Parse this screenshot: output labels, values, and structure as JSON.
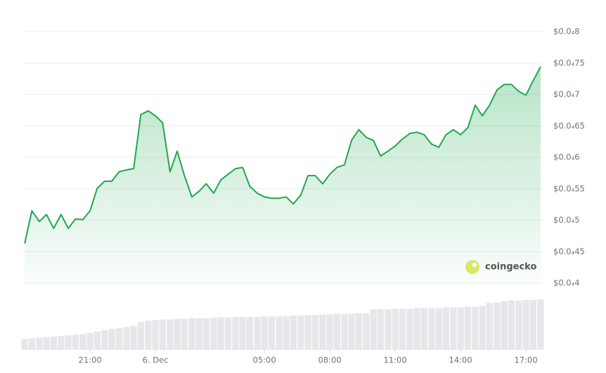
{
  "chart_data": {
    "type": "line",
    "x": [
      -6,
      -5.67,
      -5.33,
      -5,
      -4.67,
      -4.33,
      -4,
      -3.67,
      -3.33,
      -3,
      -2.67,
      -2.33,
      -2,
      -1.67,
      -1.33,
      -1,
      -0.67,
      -0.33,
      0,
      0.33,
      0.67,
      1,
      1.33,
      1.67,
      2,
      2.33,
      2.67,
      3,
      3.33,
      3.67,
      4,
      4.33,
      4.67,
      5,
      5.33,
      5.67,
      6,
      6.33,
      6.67,
      7,
      7.33,
      7.67,
      8,
      8.33,
      8.67,
      9,
      9.33,
      9.67,
      10,
      10.33,
      10.67,
      11,
      11.33,
      11.67,
      12,
      12.33,
      12.67,
      13,
      13.33,
      13.67,
      14,
      14.33,
      14.67,
      15,
      15.33,
      15.67,
      16,
      16.33,
      16.67,
      17,
      17.33,
      17.67
    ],
    "series": [
      {
        "color": "#1fa84f",
        "values": [
          4.63e-05,
          5.15e-05,
          4.98e-05,
          5.09e-05,
          4.87e-05,
          5.09e-05,
          4.87e-05,
          5.02e-05,
          5.01e-05,
          5.15e-05,
          5.51e-05,
          5.62e-05,
          5.62e-05,
          5.77e-05,
          5.8e-05,
          5.82e-05,
          6.68e-05,
          6.74e-05,
          6.66e-05,
          6.55e-05,
          5.77e-05,
          6.1e-05,
          5.71e-05,
          5.37e-05,
          5.46e-05,
          5.58e-05,
          5.43e-05,
          5.64e-05,
          5.73e-05,
          5.82e-05,
          5.84e-05,
          5.54e-05,
          5.43e-05,
          5.37e-05,
          5.35e-05,
          5.35e-05,
          5.37e-05,
          5.26e-05,
          5.4e-05,
          5.71e-05,
          5.71e-05,
          5.58e-05,
          5.73e-05,
          5.84e-05,
          5.88e-05,
          6.27e-05,
          6.44e-05,
          6.32e-05,
          6.27e-05,
          6.02e-05,
          6.1e-05,
          6.18e-05,
          6.29e-05,
          6.38e-05,
          6.4e-05,
          6.36e-05,
          6.21e-05,
          6.16e-05,
          6.36e-05,
          6.44e-05,
          6.36e-05,
          6.47e-05,
          6.83e-05,
          6.66e-05,
          6.83e-05,
          7.07e-05,
          7.16e-05,
          7.16e-05,
          7.05e-05,
          6.99e-05,
          7.22e-05,
          7.44e-05
        ]
      }
    ],
    "volume": [
      17,
      18,
      19,
      20,
      21,
      22,
      23,
      24,
      25,
      27,
      29,
      31,
      33,
      34,
      36,
      38,
      44,
      46,
      47,
      48,
      48,
      49,
      49,
      50,
      50,
      50,
      51,
      51,
      51,
      52,
      52,
      52,
      52,
      53,
      53,
      53,
      53,
      54,
      54,
      55,
      55,
      56,
      56,
      57,
      57,
      57,
      58,
      58,
      64,
      64,
      64,
      65,
      65,
      65,
      66,
      66,
      66,
      66,
      67,
      67,
      67,
      68,
      68,
      70,
      74,
      75,
      77,
      78,
      78,
      79,
      79,
      80
    ],
    "volume_color": "#e5e7eb",
    "xlim": [
      -6.1,
      17.77
    ],
    "xticks": [
      {
        "value": -3,
        "label": "21:00"
      },
      {
        "value": 0,
        "label": "6. Dec"
      },
      {
        "value": 5,
        "label": "05:00"
      },
      {
        "value": 8,
        "label": "08:00"
      },
      {
        "value": 11,
        "label": "11:00"
      },
      {
        "value": 14,
        "label": "14:00"
      },
      {
        "value": 17,
        "label": "17:00"
      }
    ],
    "ylim": [
      4e-05,
      8e-05
    ],
    "yticks": [
      {
        "value": 8e-05,
        "label": "$0.0₄8"
      },
      {
        "value": 7.5e-05,
        "label": "$0.0₄75"
      },
      {
        "value": 7e-05,
        "label": "$0.0₄7"
      },
      {
        "value": 6.5e-05,
        "label": "$0.0₄65"
      },
      {
        "value": 6e-05,
        "label": "$0.0₄6"
      },
      {
        "value": 5.5e-05,
        "label": "$0.0₄55"
      },
      {
        "value": 5e-05,
        "label": "$0.0₄5"
      },
      {
        "value": 4.5e-05,
        "label": "$0.0₄45"
      },
      {
        "value": 4e-05,
        "label": "$0.0₄4"
      }
    ],
    "grid": true,
    "watermark": "coingecko"
  }
}
